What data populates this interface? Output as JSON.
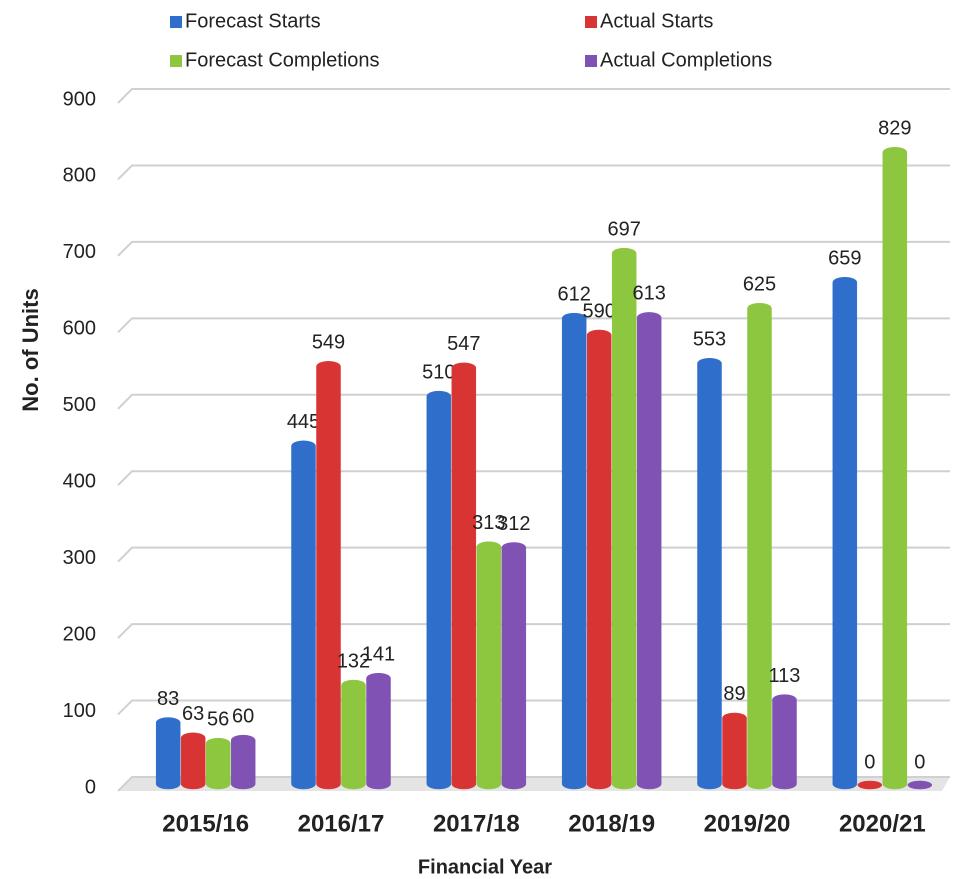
{
  "chart_data": {
    "type": "bar",
    "x_label": "Financial Year",
    "y_label": "No. of Units",
    "categories": [
      "2015/16",
      "2016/17",
      "2017/18",
      "2018/19",
      "2019/20",
      "2020/21"
    ],
    "series": [
      {
        "name": "Forecast Starts",
        "color": "#2f6fcb",
        "values": [
          83,
          445,
          510,
          612,
          553,
          659
        ]
      },
      {
        "name": "Actual Starts",
        "color": "#d93434",
        "values": [
          63,
          549,
          547,
          590,
          89,
          0
        ]
      },
      {
        "name": "Forecast Completions",
        "color": "#8dc63f",
        "values": [
          56,
          132,
          313,
          697,
          625,
          829
        ]
      },
      {
        "name": "Actual Completions",
        "color": "#7f52b3",
        "values": [
          60,
          141,
          312,
          613,
          113,
          0
        ]
      }
    ],
    "ylim": [
      0,
      900
    ],
    "yticks": [
      0,
      100,
      200,
      300,
      400,
      500,
      600,
      700,
      800,
      900
    ],
    "grid": true
  }
}
